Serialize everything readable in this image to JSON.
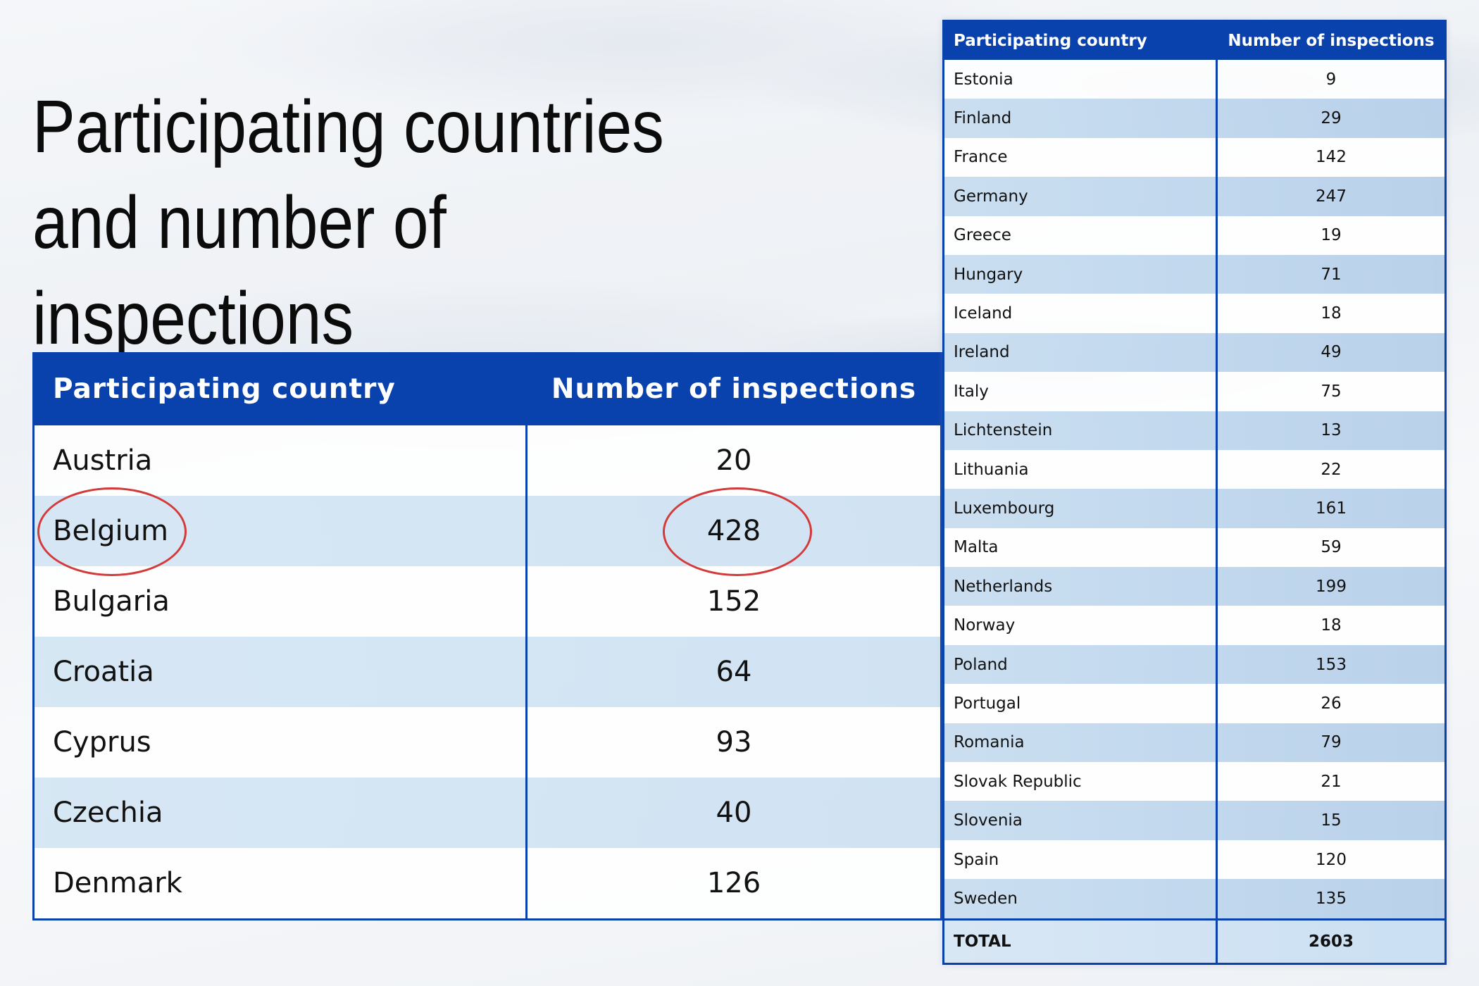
{
  "title": "Participating countries and number of inspections",
  "colors": {
    "header_blue": "#0a42ad",
    "highlight_red": "#d43a3a",
    "row_light": "#ffffff",
    "row_blue": "#d3e5f4"
  },
  "left_table": {
    "headers": [
      "Participating country",
      "Number of inspections"
    ],
    "rows": [
      {
        "country": "Austria",
        "count": "20"
      },
      {
        "country": "Belgium",
        "count": "428"
      },
      {
        "country": "Bulgaria",
        "count": "152"
      },
      {
        "country": "Croatia",
        "count": "64"
      },
      {
        "country": "Cyprus",
        "count": "93"
      },
      {
        "country": "Czechia",
        "count": "40"
      },
      {
        "country": "Denmark",
        "count": "126"
      }
    ],
    "highlighted_row": "Belgium"
  },
  "right_table": {
    "headers": [
      "Participating country",
      "Number of inspections"
    ],
    "rows": [
      {
        "country": "Estonia",
        "count": "9"
      },
      {
        "country": "Finland",
        "count": "29"
      },
      {
        "country": "France",
        "count": "142"
      },
      {
        "country": "Germany",
        "count": "247"
      },
      {
        "country": "Greece",
        "count": "19"
      },
      {
        "country": "Hungary",
        "count": "71"
      },
      {
        "country": "Iceland",
        "count": "18"
      },
      {
        "country": "Ireland",
        "count": "49"
      },
      {
        "country": "Italy",
        "count": "75"
      },
      {
        "country": "Lichtenstein",
        "count": "13"
      },
      {
        "country": "Lithuania",
        "count": "22"
      },
      {
        "country": "Luxembourg",
        "count": "161"
      },
      {
        "country": "Malta",
        "count": "59"
      },
      {
        "country": "Netherlands",
        "count": "199"
      },
      {
        "country": "Norway",
        "count": "18"
      },
      {
        "country": "Poland",
        "count": "153"
      },
      {
        "country": "Portugal",
        "count": "26"
      },
      {
        "country": "Romania",
        "count": "79"
      },
      {
        "country": "Slovak Republic",
        "count": "21"
      },
      {
        "country": "Slovenia",
        "count": "15"
      },
      {
        "country": "Spain",
        "count": "120"
      },
      {
        "country": "Sweden",
        "count": "135"
      }
    ],
    "total": {
      "label": "TOTAL",
      "count": "2603"
    }
  }
}
